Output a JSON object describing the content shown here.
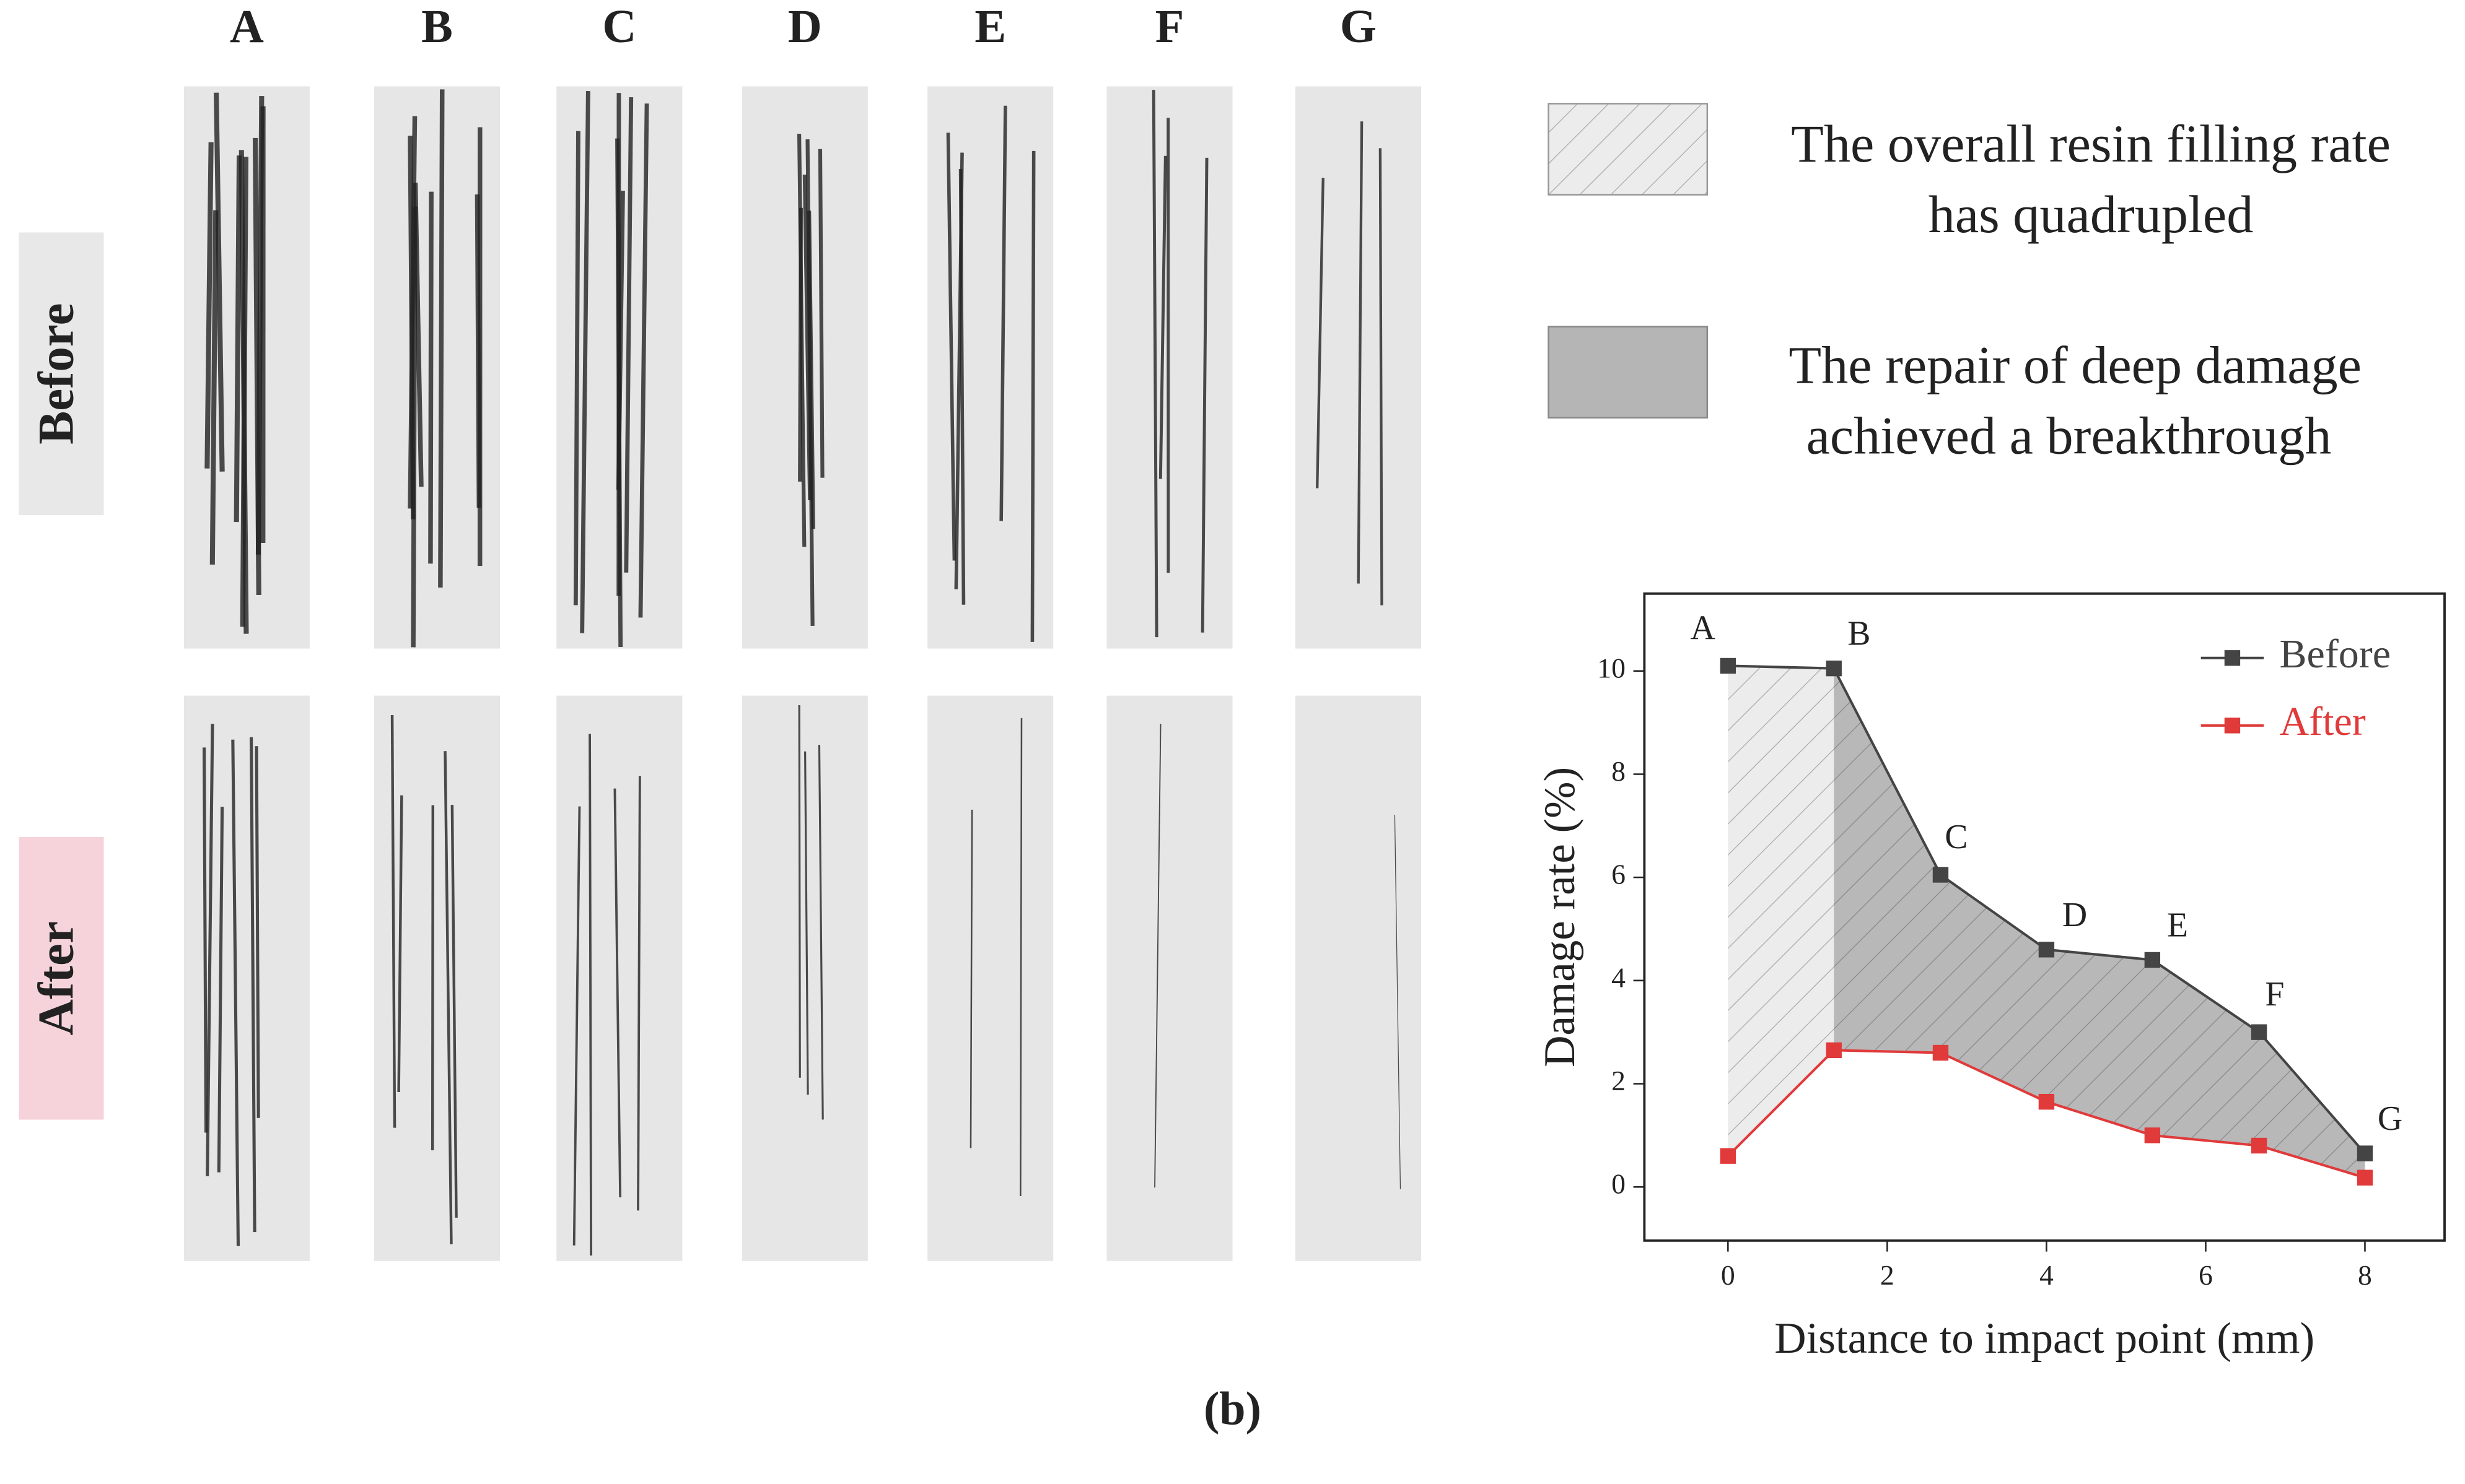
{
  "images": {
    "columns": [
      "A",
      "B",
      "C",
      "D",
      "E",
      "F",
      "G"
    ],
    "rows": [
      "Before",
      "After"
    ]
  },
  "annotations": [
    {
      "lines": [
        "The overall resin filling rate",
        "has quadrupled"
      ]
    },
    {
      "lines": [
        "The repair of deep damage",
        "achieved a breakthrough"
      ]
    }
  ],
  "caption": "(b)",
  "chart_data": {
    "type": "line",
    "x": [
      0,
      1.33,
      2.67,
      4,
      5.33,
      6.67,
      8
    ],
    "point_labels": [
      "A",
      "B",
      "C",
      "D",
      "E",
      "F",
      "G"
    ],
    "series": [
      {
        "name": "Before",
        "color": "#444444",
        "values": [
          10.1,
          10.05,
          6.05,
          4.6,
          4.4,
          3.0,
          0.65
        ]
      },
      {
        "name": "After",
        "color": "#e03a3a",
        "values": [
          0.6,
          2.65,
          2.6,
          1.65,
          1.0,
          0.8,
          0.18
        ]
      }
    ],
    "xlabel": "Distance to impact point (mm)",
    "ylabel": "Damage rate (%)",
    "xlim": [
      -1.05,
      9.0
    ],
    "ylim": [
      -1.04,
      11.5
    ],
    "xticks": [
      0,
      2,
      4,
      6,
      8
    ],
    "yticks": [
      0,
      2,
      4,
      6,
      8,
      10
    ],
    "legend": "upper right"
  }
}
